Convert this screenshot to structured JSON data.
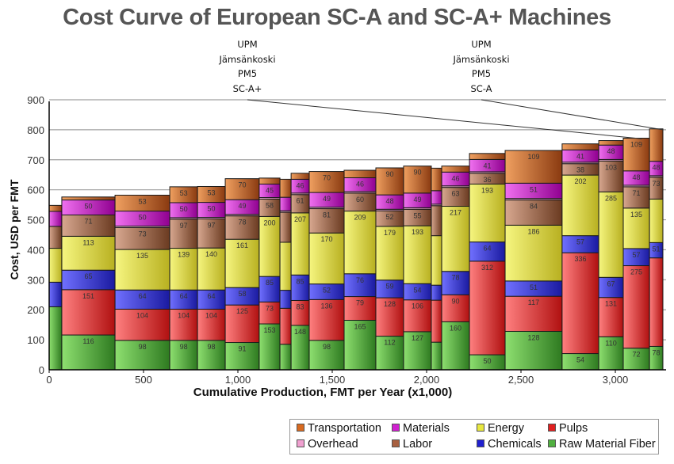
{
  "chart_data": {
    "type": "bar",
    "subtype": "variable-width stacked (cost curve)",
    "title": "Cost Curve of European SC-A and SC-A+ Machines",
    "xlabel": "Cumulative Production, FMT per Year (x1,000)",
    "ylabel": "Cost, USD per FMT",
    "xlim": [
      0,
      3252
    ],
    "ylim": [
      0,
      900
    ],
    "yticks": [
      "0",
      "100",
      "200",
      "300",
      "400",
      "500",
      "600",
      "700",
      "800",
      "900"
    ],
    "ytick_values": [
      0,
      100,
      200,
      300,
      400,
      500,
      600,
      700,
      800,
      900
    ],
    "xticks": [
      "0",
      "500",
      "1,000",
      "1,500",
      "2,000",
      "2,500",
      "3,000"
    ],
    "xtick_values": [
      0,
      500,
      1000,
      1500,
      2000,
      2500,
      3000
    ],
    "grid": true,
    "legend_position": "bottom-right",
    "series_names": [
      "Raw Material Fiber",
      "Pulps",
      "Chemicals",
      "Energy",
      "Labor",
      "Overhead",
      "Materials",
      "Transportation"
    ],
    "legend": [
      {
        "name": "Transportation",
        "color": "#d86a20"
      },
      {
        "name": "Materials",
        "color": "#d020d0"
      },
      {
        "name": "Energy",
        "color": "#e8e840"
      },
      {
        "name": "Pulps",
        "color": "#e02020"
      },
      {
        "name": "Overhead",
        "color": "#f0a0d0"
      },
      {
        "name": "Labor",
        "color": "#a86040"
      },
      {
        "name": "Chemicals",
        "color": "#2020d0"
      },
      {
        "name": "Raw Material Fiber",
        "color": "#50b040"
      }
    ],
    "colors": {
      "Raw Material Fiber": [
        "#8ee070",
        "#2e7a20"
      ],
      "Pulps": [
        "#ff8080",
        "#b01010"
      ],
      "Chemicals": [
        "#7070ff",
        "#1a1aa0"
      ],
      "Energy": [
        "#f6f680",
        "#b8b020"
      ],
      "Labor": [
        "#d8a890",
        "#6a3a20"
      ],
      "Overhead": [
        "#f8c0e0",
        "#c080a0"
      ],
      "Materials": [
        "#f070f0",
        "#900090"
      ],
      "Transportation": [
        "#f0a060",
        "#8a3a10"
      ]
    },
    "bars": [
      {
        "x0": 0,
        "x1": 67,
        "values": [
          210,
          0,
          82,
          113,
          73,
          0,
          50,
          20
        ],
        "labels": [
          null,
          null,
          null,
          null,
          null,
          null,
          null,
          null
        ]
      },
      {
        "x0": 67,
        "x1": 349,
        "values": [
          116,
          151,
          65,
          113,
          71,
          0,
          50,
          10
        ],
        "labels": [
          "116",
          "151",
          "65",
          "113",
          "71",
          null,
          "50",
          null
        ]
      },
      {
        "x0": 349,
        "x1": 639,
        "values": [
          98,
          104,
          64,
          135,
          73,
          5,
          50,
          53
        ],
        "labels": [
          "98",
          "104",
          "64",
          "135",
          "73",
          null,
          "50",
          "53"
        ]
      },
      {
        "x0": 639,
        "x1": 786,
        "values": [
          98,
          104,
          64,
          139,
          97,
          5,
          50,
          53
        ],
        "labels": [
          "98",
          "104",
          "64",
          "139",
          "97",
          null,
          "50",
          "53"
        ]
      },
      {
        "x0": 786,
        "x1": 933,
        "values": [
          98,
          104,
          64,
          140,
          97,
          5,
          50,
          53
        ],
        "labels": [
          "98",
          "104",
          "64",
          "140",
          "97",
          null,
          "50",
          "53"
        ]
      },
      {
        "x0": 933,
        "x1": 1113,
        "values": [
          91,
          125,
          58,
          161,
          78,
          5,
          49,
          70
        ],
        "labels": [
          "91",
          "125",
          "58",
          "161",
          "78",
          null,
          "49",
          "70"
        ]
      },
      {
        "x0": 1113,
        "x1": 1223,
        "values": [
          153,
          73,
          85,
          200,
          58,
          5,
          45,
          20
        ],
        "labels": [
          "153",
          "73",
          "85",
          "200",
          "58",
          null,
          "45",
          null
        ]
      },
      {
        "x0": 1223,
        "x1": 1282,
        "values": [
          85,
          120,
          60,
          160,
          100,
          5,
          45,
          60
        ],
        "labels": [
          null,
          null,
          null,
          null,
          null,
          null,
          null,
          null
        ]
      },
      {
        "x0": 1282,
        "x1": 1378,
        "values": [
          148,
          83,
          85,
          207,
          61,
          5,
          46,
          20
        ],
        "labels": [
          "148",
          "83",
          "85",
          "207",
          "61",
          null,
          "46",
          null
        ]
      },
      {
        "x0": 1378,
        "x1": 1563,
        "values": [
          98,
          136,
          52,
          170,
          81,
          5,
          49,
          70
        ],
        "labels": [
          "98",
          "136",
          "52",
          "170",
          "81",
          null,
          "49",
          "70"
        ]
      },
      {
        "x0": 1563,
        "x1": 1731,
        "values": [
          165,
          79,
          76,
          209,
          60,
          5,
          46,
          25
        ],
        "labels": [
          "165",
          "79",
          "76",
          "209",
          "60",
          null,
          "46",
          null
        ]
      },
      {
        "x0": 1731,
        "x1": 1878,
        "values": [
          112,
          128,
          59,
          179,
          52,
          5,
          48,
          90
        ],
        "labels": [
          "112",
          "128",
          "59",
          "179",
          "52",
          null,
          "48",
          "90"
        ]
      },
      {
        "x0": 1878,
        "x1": 2025,
        "values": [
          127,
          106,
          54,
          193,
          55,
          5,
          49,
          90
        ],
        "labels": [
          "127",
          "106",
          "54",
          "193",
          "55",
          null,
          "49",
          "90"
        ]
      },
      {
        "x0": 2025,
        "x1": 2080,
        "values": [
          92,
          140,
          50,
          165,
          100,
          5,
          45,
          75
        ],
        "labels": [
          null,
          null,
          null,
          null,
          null,
          null,
          null,
          null
        ]
      },
      {
        "x0": 2080,
        "x1": 2227,
        "values": [
          160,
          90,
          78,
          217,
          63,
          5,
          46,
          20
        ],
        "labels": [
          "160",
          "90",
          "78",
          "217",
          "63",
          null,
          "46",
          null
        ]
      },
      {
        "x0": 2227,
        "x1": 2416,
        "values": [
          50,
          312,
          64,
          193,
          36,
          5,
          41,
          20
        ],
        "labels": [
          "50",
          "312",
          "64",
          "193",
          "36",
          null,
          "41",
          null
        ]
      },
      {
        "x0": 2416,
        "x1": 2718,
        "values": [
          128,
          117,
          51,
          186,
          84,
          5,
          51,
          109
        ],
        "labels": [
          "128",
          "117",
          "51",
          "186",
          "84",
          null,
          "51",
          "109"
        ]
      },
      {
        "x0": 2718,
        "x1": 2912,
        "values": [
          54,
          336,
          57,
          202,
          38,
          5,
          41,
          20
        ],
        "labels": [
          "54",
          "336",
          "57",
          "202",
          "38",
          null,
          "41",
          null
        ]
      },
      {
        "x0": 2912,
        "x1": 3042,
        "values": [
          110,
          131,
          67,
          285,
          103,
          5,
          48,
          15
        ],
        "labels": [
          "110",
          "131",
          "67",
          "285",
          "103",
          null,
          "48",
          null
        ]
      },
      {
        "x0": 3042,
        "x1": 3181,
        "values": [
          72,
          275,
          57,
          135,
          71,
          5,
          48,
          109
        ],
        "labels": [
          "72",
          "275",
          "57",
          "135",
          "71",
          null,
          "48",
          "109"
        ]
      },
      {
        "x0": 3181,
        "x1": 3252,
        "values": [
          78,
          295,
          51,
          145,
          73,
          5,
          48,
          108
        ],
        "labels": [
          "78",
          null,
          "51",
          null,
          "73",
          null,
          "48",
          null
        ]
      }
    ],
    "annotations": [
      {
        "lines": [
          "UPM",
          "Jämsänkoski",
          "PM5",
          "SC-A+"
        ],
        "points_to_x": 3140,
        "points_to_y": 770
      },
      {
        "lines": [
          "UPM",
          "Jämsänkoski",
          "PM5",
          "SC-A"
        ],
        "points_to_x": 3252,
        "points_to_y": 800
      }
    ]
  }
}
